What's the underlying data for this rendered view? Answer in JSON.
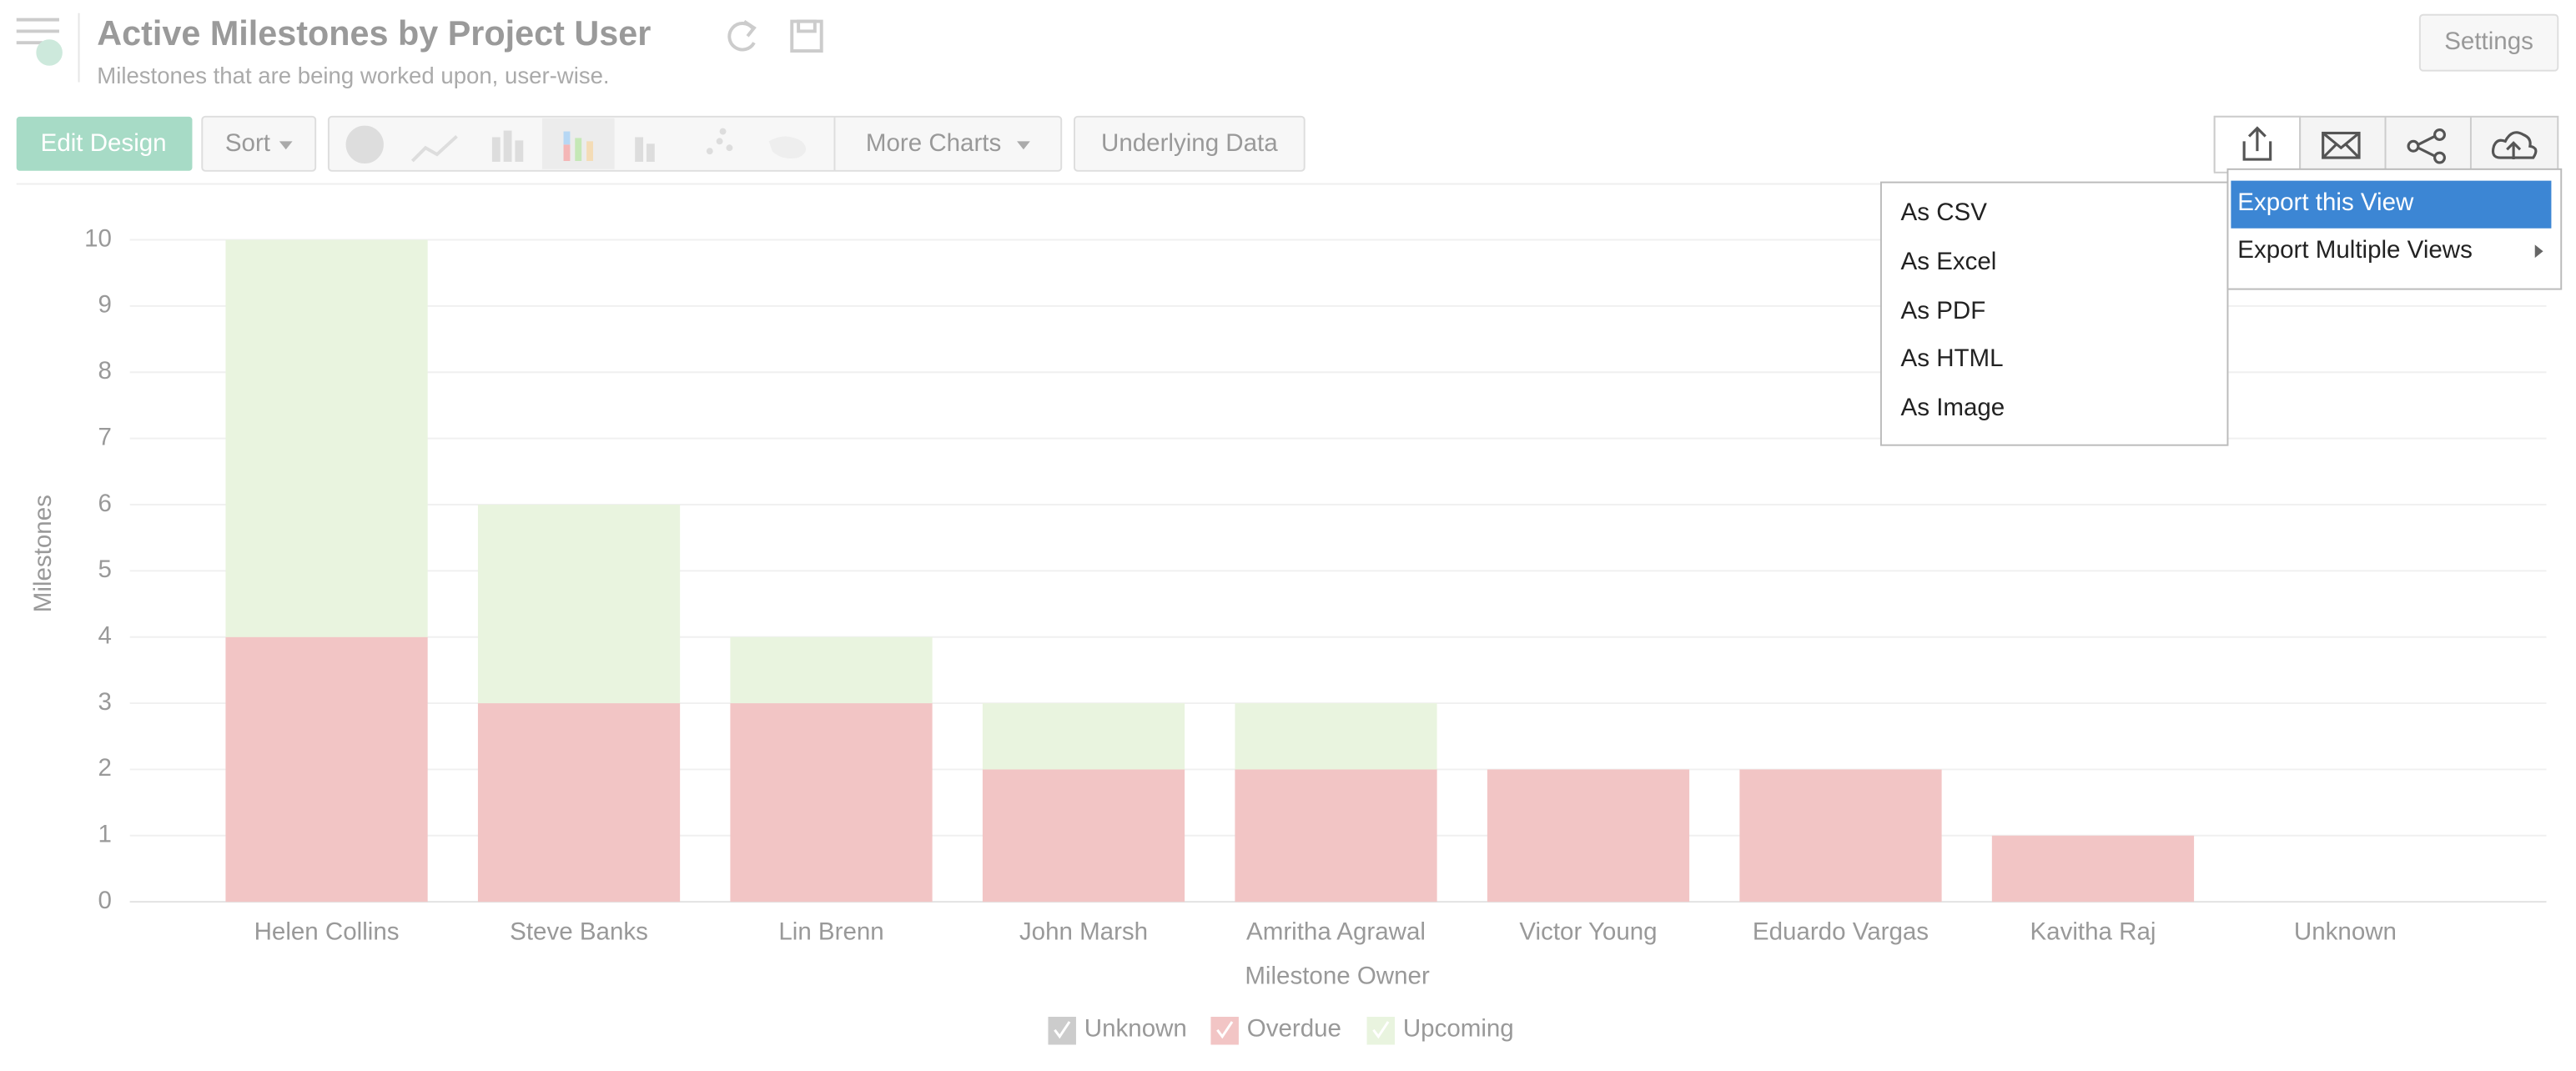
{
  "header": {
    "title": "Active Milestones by Project User",
    "subtitle": "Milestones that are being worked upon, user-wise."
  },
  "toolbar": {
    "edit": "Edit Design",
    "sort": "Sort",
    "more": "More Charts",
    "underlying": "Underlying Data",
    "settings": "Settings"
  },
  "export_menu": {
    "items": [
      "Export this View",
      "Export Multiple Views"
    ],
    "formats": [
      "As CSV",
      "As Excel",
      "As PDF",
      "As HTML",
      "As Image"
    ]
  },
  "chart_data": {
    "type": "stacked_bar",
    "x_label": "Milestone Owner",
    "y_label": "Milestones",
    "categories": [
      "Helen Collins",
      "Steve Banks",
      "Lin Brenn",
      "John Marsh",
      "Amritha Agrawal",
      "Victor Young",
      "Eduardo Vargas",
      "Kavitha Raj",
      "Unknown"
    ],
    "series": [
      {
        "name": "Unknown",
        "color": "#cccccc",
        "values": [
          0,
          0,
          0,
          0,
          0,
          0,
          0,
          0,
          0
        ]
      },
      {
        "name": "Overdue",
        "color": "#f2c5c5",
        "values": [
          4,
          3,
          3,
          2,
          2,
          2,
          2,
          1,
          0
        ]
      },
      {
        "name": "Upcoming",
        "color": "#e9f4df",
        "values": [
          6,
          3,
          1,
          1,
          1,
          0,
          0,
          0,
          0
        ]
      }
    ],
    "ylim": [
      0,
      10
    ],
    "yticks": [
      0,
      1,
      2,
      3,
      4,
      5,
      6,
      7,
      8,
      9,
      10
    ],
    "grid": true,
    "legend": "bottom"
  }
}
